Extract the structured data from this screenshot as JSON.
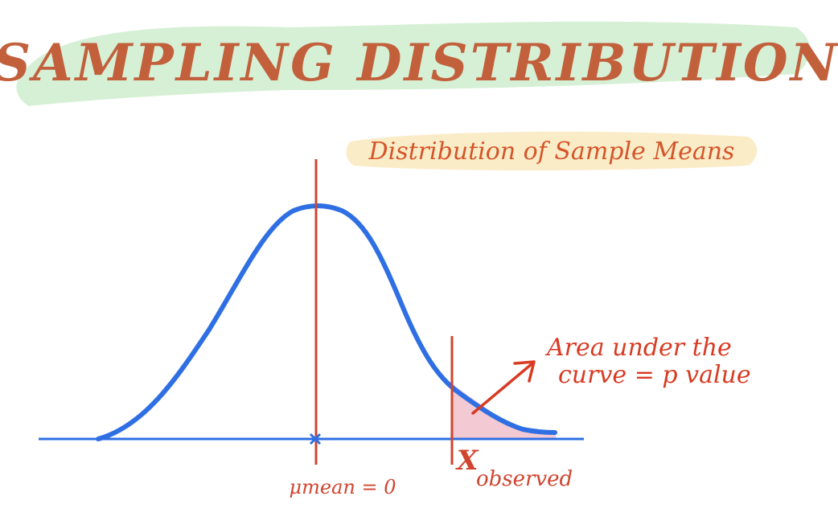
{
  "title": "SAMPLING DISTRIBUTION",
  "subtitle": "Distribution of Sample Means",
  "annotation": {
    "line1": "Area under the",
    "line2": "curve = p value"
  },
  "labels": {
    "mean": "μmean = 0",
    "observed_symbol": "X",
    "observed_sub": "observed"
  },
  "colors": {
    "title_ink": "#c2603c",
    "title_highlight": "#d6f0d6",
    "subtitle_ink": "#d4552a",
    "subtitle_highlight": "#fbecc8",
    "curve": "#2f6fe4",
    "axis": "#2f6fe4",
    "marker_lines": "#d0452f",
    "tail_fill": "#f3c9d3",
    "annotation_ink": "#d83a22"
  }
}
